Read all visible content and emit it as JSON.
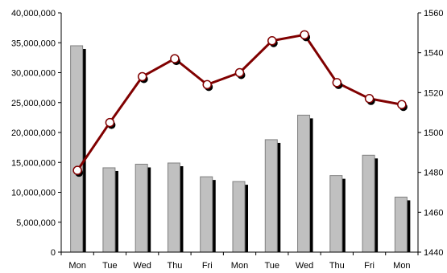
{
  "chart_data": {
    "type": "bar",
    "categories": [
      "Mon",
      "Tue",
      "Wed",
      "Thu",
      "Fri",
      "Mon",
      "Tue",
      "Wed",
      "Thu",
      "Fri",
      "Mon"
    ],
    "series": [
      {
        "type": "bar",
        "axis": "left",
        "values": [
          34500000,
          14100000,
          14700000,
          14900000,
          12600000,
          11800000,
          18800000,
          22900000,
          12800000,
          16200000,
          9200000
        ]
      },
      {
        "type": "line",
        "axis": "right",
        "values": [
          1481,
          1505,
          1528,
          1537,
          1524,
          1530,
          1546,
          1549,
          1525,
          1517,
          1514
        ]
      }
    ],
    "left_axis": {
      "ylim": [
        0,
        40000000
      ],
      "ticks": [
        "0",
        "5,000,000",
        "10,000,000",
        "15,000,000",
        "20,000,000",
        "25,000,000",
        "30,000,000",
        "35,000,000",
        "40,000,000"
      ]
    },
    "right_axis": {
      "ylim": [
        1440,
        1560
      ],
      "ticks": [
        "1440",
        "1460",
        "1480",
        "1500",
        "1520",
        "1540",
        "1560"
      ]
    },
    "grid": false,
    "legend": "none",
    "colors": {
      "bar_fill": "#c0c0c0",
      "bar_shadow": "#000000",
      "bar_outline": "#808080",
      "line": "#800000",
      "marker_fill": "#ffffff",
      "marker_shadow": "#000000",
      "axis": "#000000"
    }
  }
}
